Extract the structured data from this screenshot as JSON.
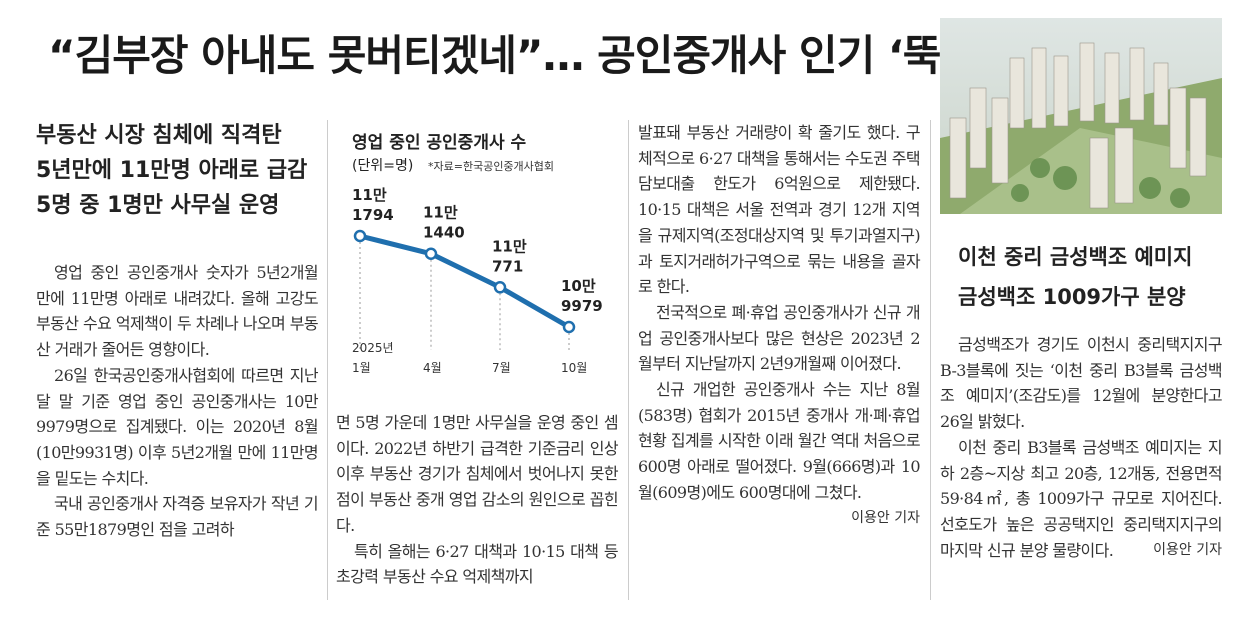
{
  "headline": "“김부장 아내도 못버티겠네”… 공인중개사 인기 ‘뚝’",
  "article1": {
    "subheads": [
      "부동산 시장 침체에 직격탄",
      "5년만에 11만명 아래로 급감",
      "5명 중 1명만 사무실 운영"
    ],
    "col1": [
      "영업 중인 공인중개사 숫자가 5년2개월 만에 11만명 아래로 내려갔다. 올해 고강도 부동산 수요 억제책이 두 차례나 나오며 부동산 거래가 줄어든 영향이다.",
      "26일 한국공인중개사협회에 따르면 지난달 말 기준 영업 중인 공인중개사는 10만9979명으로 집계됐다. 이는 2020년 8월(10만9931명) 이후 5년2개월 만에 11만명을 밑도는 수치다.",
      "국내 공인중개사 자격증 보유자가 작년 기준 55만1879명인 점을 고려하"
    ],
    "col2": [
      "면 5명 가운데 1명만 사무실을 운영 중인 셈이다. 2022년 하반기 급격한 기준금리 인상 이후 부동산 경기가 침체에서 벗어나지 못한 점이 부동산 중개 영업 감소의 원인으로 꼽힌다.",
      "특히 올해는 6·27 대책과 10·15 대책 등 초강력 부동산 수요 억제책까지"
    ],
    "col3": [
      "발표돼 부동산 거래량이 확 줄기도 했다. 구체적으로 6·27 대책을 통해서는 수도권 주택담보대출 한도가 6억원으로 제한됐다. 10·15 대책은 서울 전역과 경기 12개 지역을 규제지역(조정대상지역 및 투기과열지구)과 토지거래허가구역으로 묶는 내용을 골자로 한다.",
      "전국적으로 폐·휴업 공인중개사가 신규 개업 공인중개사보다 많은 현상은 2023년 2월부터 지난달까지 2년9개월째 이어졌다.",
      "신규 개업한 공인중개사 수는 지난 8월(583명) 협회가 2015년 중개사 개·폐·휴업 현황 집계를 시작한 이래 월간 역대 처음으로 600명 아래로 떨어졌다. 9월(666명)과 10월(609명)에도 600명대에 그쳤다."
    ],
    "byline": "이용안 기자"
  },
  "chart": {
    "title": "영업 중인 공인중개사 수",
    "unit": "(단위=명)",
    "source": "*자료=한국공인중개사협회"
  },
  "chart_data": {
    "type": "line",
    "title": "영업 중인 공인중개사 수",
    "unit": "명",
    "x_labels": [
      [
        "2025년",
        "1월"
      ],
      [
        "4월"
      ],
      [
        "7월"
      ],
      [
        "10월"
      ]
    ],
    "values": [
      111794,
      111440,
      110771,
      109979
    ],
    "value_labels": [
      [
        "11만",
        "1794"
      ],
      [
        "11만",
        "1440"
      ],
      [
        "11만",
        "771"
      ],
      [
        "10만",
        "9979"
      ]
    ],
    "color": "#1f6fae",
    "grid": false
  },
  "article2": {
    "subheads": [
      "이천 중리 금성백조 예미지",
      "금성백조 1009가구 분양"
    ],
    "paragraphs": [
      "금성백조가 경기도 이천시 중리택지지구 B-3블록에 짓는 ‘이천 중리 B3블록 금성백조 예미지’(조감도)를 12월에 분양한다고 26일 밝혔다.",
      "이천 중리 B3블록 금성백조 예미지는 지하 2층~지상 최고 20층, 12개동, 전용면적 59·84㎡, 총 1009가구 규모로 지어진다. 선호도가 높은 공공택지인 중리택지지구의 마지막 신규 분양 물량이다."
    ],
    "byline": "이용안 기자"
  }
}
